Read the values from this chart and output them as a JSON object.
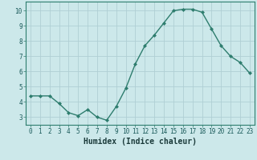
{
  "x": [
    0,
    1,
    2,
    3,
    4,
    5,
    6,
    7,
    8,
    9,
    10,
    11,
    12,
    13,
    14,
    15,
    16,
    17,
    18,
    19,
    20,
    21,
    22,
    23
  ],
  "y": [
    4.4,
    4.4,
    4.4,
    3.9,
    3.3,
    3.1,
    3.5,
    3.0,
    2.8,
    3.7,
    4.9,
    6.5,
    7.7,
    8.4,
    9.2,
    10.0,
    10.1,
    10.1,
    9.9,
    8.8,
    7.7,
    7.0,
    6.6,
    5.9
  ],
  "line_color": "#2e7d6e",
  "marker": "D",
  "marker_size": 2,
  "bg_color": "#cce8ea",
  "grid_color": "#b0cfd4",
  "xlabel": "Humidex (Indice chaleur)",
  "xlim": [
    -0.5,
    23.5
  ],
  "ylim": [
    2.5,
    10.6
  ],
  "yticks": [
    3,
    4,
    5,
    6,
    7,
    8,
    9,
    10
  ],
  "xticks": [
    0,
    1,
    2,
    3,
    4,
    5,
    6,
    7,
    8,
    9,
    10,
    11,
    12,
    13,
    14,
    15,
    16,
    17,
    18,
    19,
    20,
    21,
    22,
    23
  ],
  "tick_label_fontsize": 5.5,
  "xlabel_fontsize": 7,
  "linewidth": 1.0,
  "spine_color": "#2e7d6e"
}
